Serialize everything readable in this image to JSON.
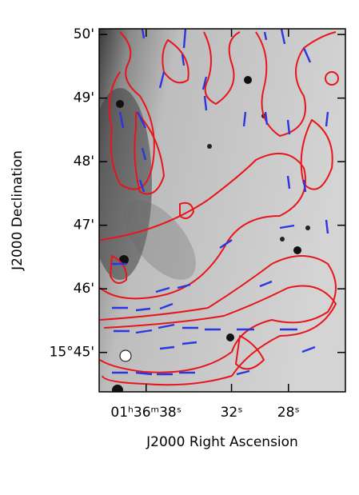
{
  "chart_data": {
    "type": "image",
    "x_label": "J2000 Right Ascension",
    "y_label": "J2000 Declination",
    "xlim": [
      41.3,
      24.0
    ],
    "ylim": [
      44.38,
      50.09
    ],
    "xticks": [
      {
        "value": 38,
        "label": "01ʰ36ᵐ38ˢ"
      },
      {
        "value": 32,
        "label": "32ˢ"
      },
      {
        "value": 28,
        "label": "28ˢ"
      }
    ],
    "yticks": [
      {
        "value": 45,
        "label": "15°45'"
      },
      {
        "value": 46,
        "label": "46'"
      },
      {
        "value": 47,
        "label": "47'"
      },
      {
        "value": 48,
        "label": "48'"
      },
      {
        "value": 49,
        "label": "49'"
      },
      {
        "value": 50,
        "label": "50'"
      }
    ]
  }
}
